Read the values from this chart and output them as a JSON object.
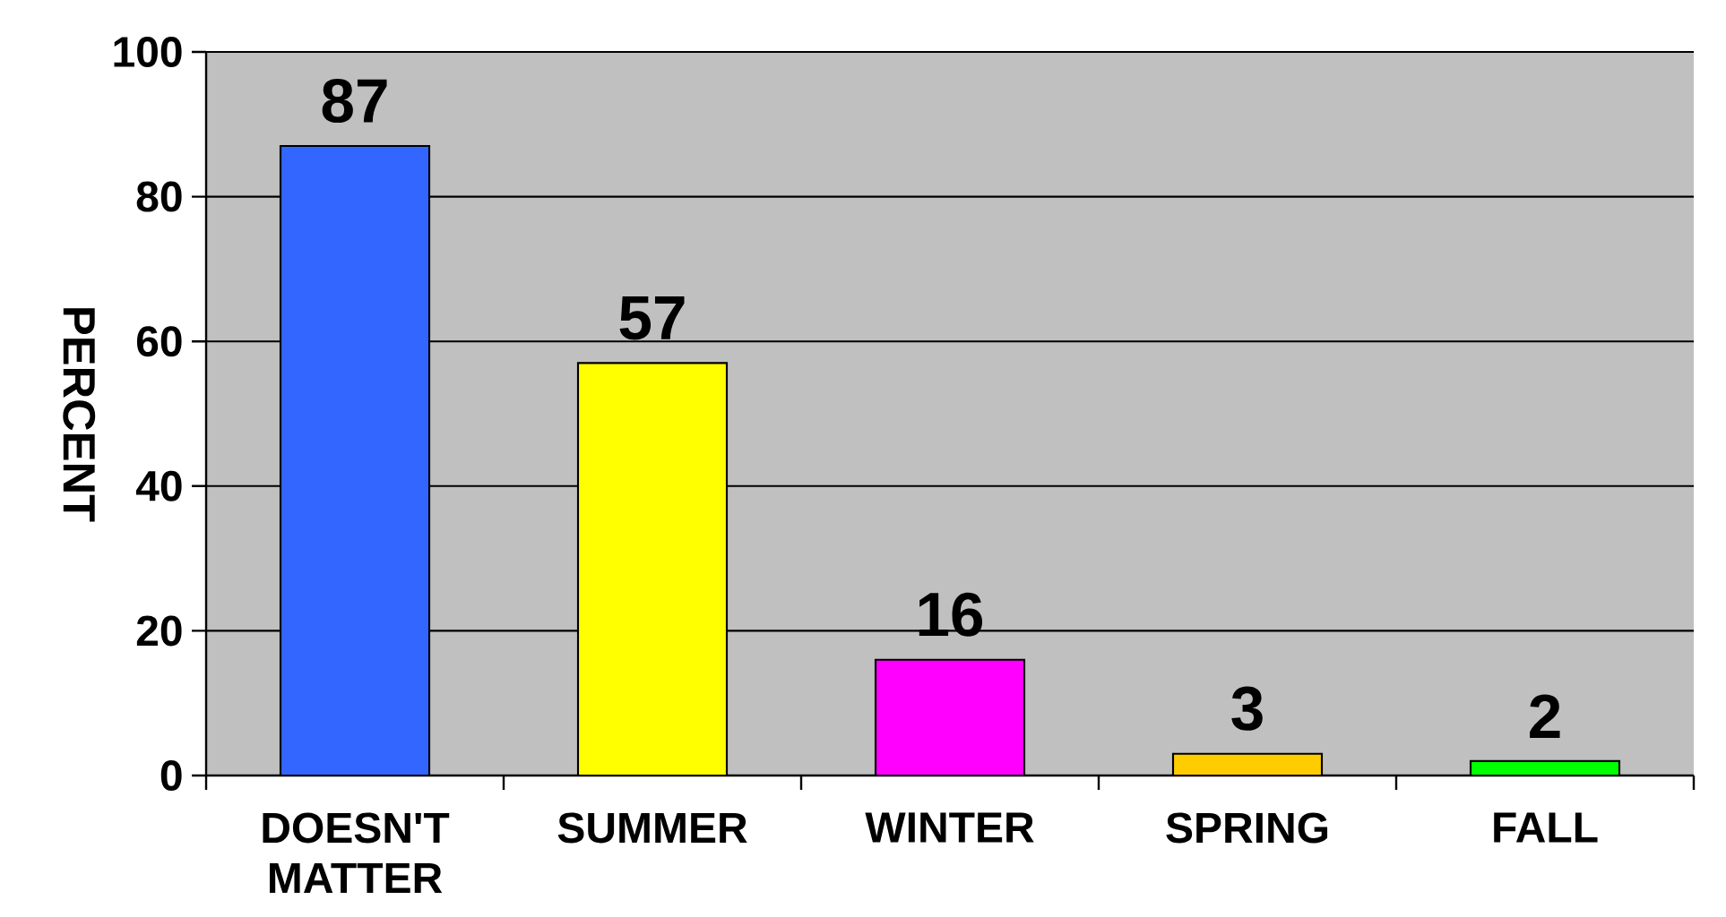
{
  "chart_data": {
    "type": "bar",
    "ylabel": "PERCENT",
    "categories": [
      "DOESN'T MATTER",
      "SUMMER",
      "WINTER",
      "SPRING",
      "FALL"
    ],
    "values": [
      87,
      57,
      16,
      3,
      2
    ],
    "colors": [
      "#3366ff",
      "#ffff00",
      "#ff00ff",
      "#ffcc00",
      "#00ff00"
    ],
    "ylim": [
      0,
      100
    ],
    "yticks": [
      0,
      20,
      40,
      60,
      80,
      100
    ],
    "grid": "y",
    "data_labels": true
  }
}
